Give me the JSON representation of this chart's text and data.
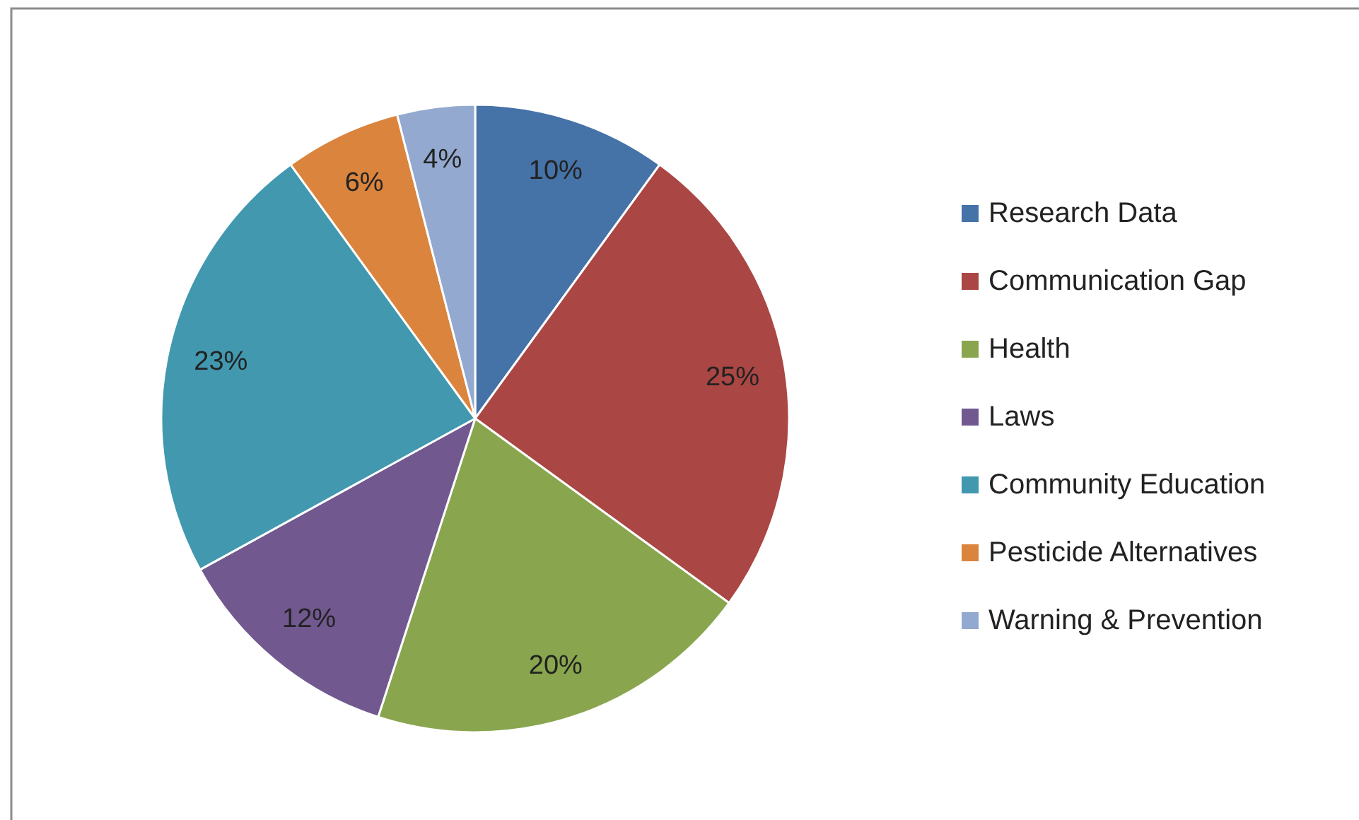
{
  "chart_data": {
    "type": "pie",
    "categories": [
      "Research Data",
      "Communication Gap",
      "Health",
      "Laws",
      "Community Education",
      "Pesticide Alternatives",
      "Warning & Prevention"
    ],
    "values": [
      10,
      25,
      20,
      12,
      23,
      6,
      4
    ],
    "colors": [
      "#4572a7",
      "#aa4643",
      "#89a54e",
      "#71588f",
      "#4198af",
      "#db843d",
      "#93a9cf"
    ],
    "value_labels": [
      "10%",
      "25%",
      "20%",
      "12%",
      "23%",
      "6%",
      "4%"
    ],
    "legend": "right"
  }
}
